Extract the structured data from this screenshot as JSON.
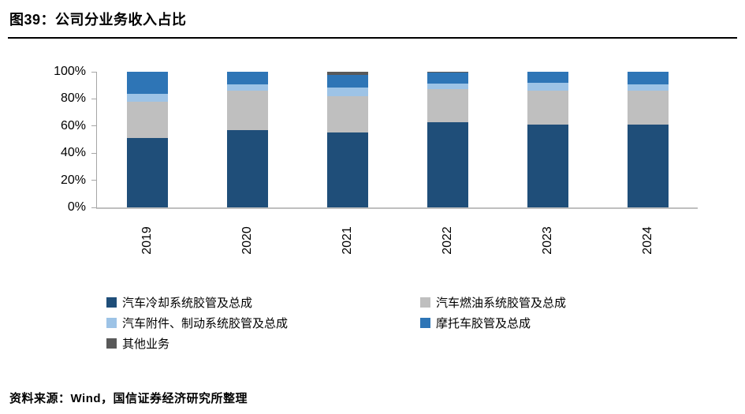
{
  "figure": {
    "title": "图39：公司分业务收入占比",
    "source": "资料来源：Wind，国信证券经济研究所整理"
  },
  "colors": {
    "cooling": "#1F4E79",
    "fuel": "#BFBFBF",
    "accessory": "#9DC3E6",
    "moto": "#2E75B6",
    "other": "#595959",
    "axis": "#A6A6A6",
    "baseline": "#BFBFBF",
    "title_rule": "#000000"
  },
  "chart_data": {
    "type": "bar",
    "stacked": true,
    "unit": "%",
    "title": "公司分业务收入占比",
    "categories": [
      "2019",
      "2020",
      "2021",
      "2022",
      "2023",
      "2024"
    ],
    "series": [
      {
        "name": "汽车冷却系统胶管及总成",
        "color_key": "cooling",
        "values": [
          51,
          57,
          55,
          63,
          61,
          61
        ]
      },
      {
        "name": "汽车燃油系统胶管及总成",
        "color_key": "fuel",
        "values": [
          27,
          29,
          27,
          24,
          25,
          25
        ]
      },
      {
        "name": "汽车附件、制动系统胶管及总成",
        "color_key": "accessory",
        "values": [
          6,
          5,
          6.5,
          4.5,
          6,
          5
        ]
      },
      {
        "name": "摩托车胶管及总成",
        "color_key": "moto",
        "values": [
          16,
          9,
          9,
          8,
          8,
          9
        ]
      },
      {
        "name": "其他业务",
        "color_key": "other",
        "values": [
          0,
          0,
          2.5,
          0.5,
          0,
          0
        ]
      }
    ],
    "y_ticks": [
      "0%",
      "20%",
      "40%",
      "60%",
      "80%",
      "100%"
    ],
    "ylim": [
      0,
      100
    ],
    "grid": false,
    "legend_position": "bottom",
    "x_tick_rotation": -90
  },
  "legend": {
    "items": [
      {
        "label": "汽车冷却系统胶管及总成",
        "color_key": "cooling"
      },
      {
        "label": "汽车燃油系统胶管及总成",
        "color_key": "fuel"
      },
      {
        "label": "汽车附件、制动系统胶管及总成",
        "color_key": "accessory"
      },
      {
        "label": "摩托车胶管及总成",
        "color_key": "moto"
      },
      {
        "label": "其他业务",
        "color_key": "other"
      }
    ]
  }
}
